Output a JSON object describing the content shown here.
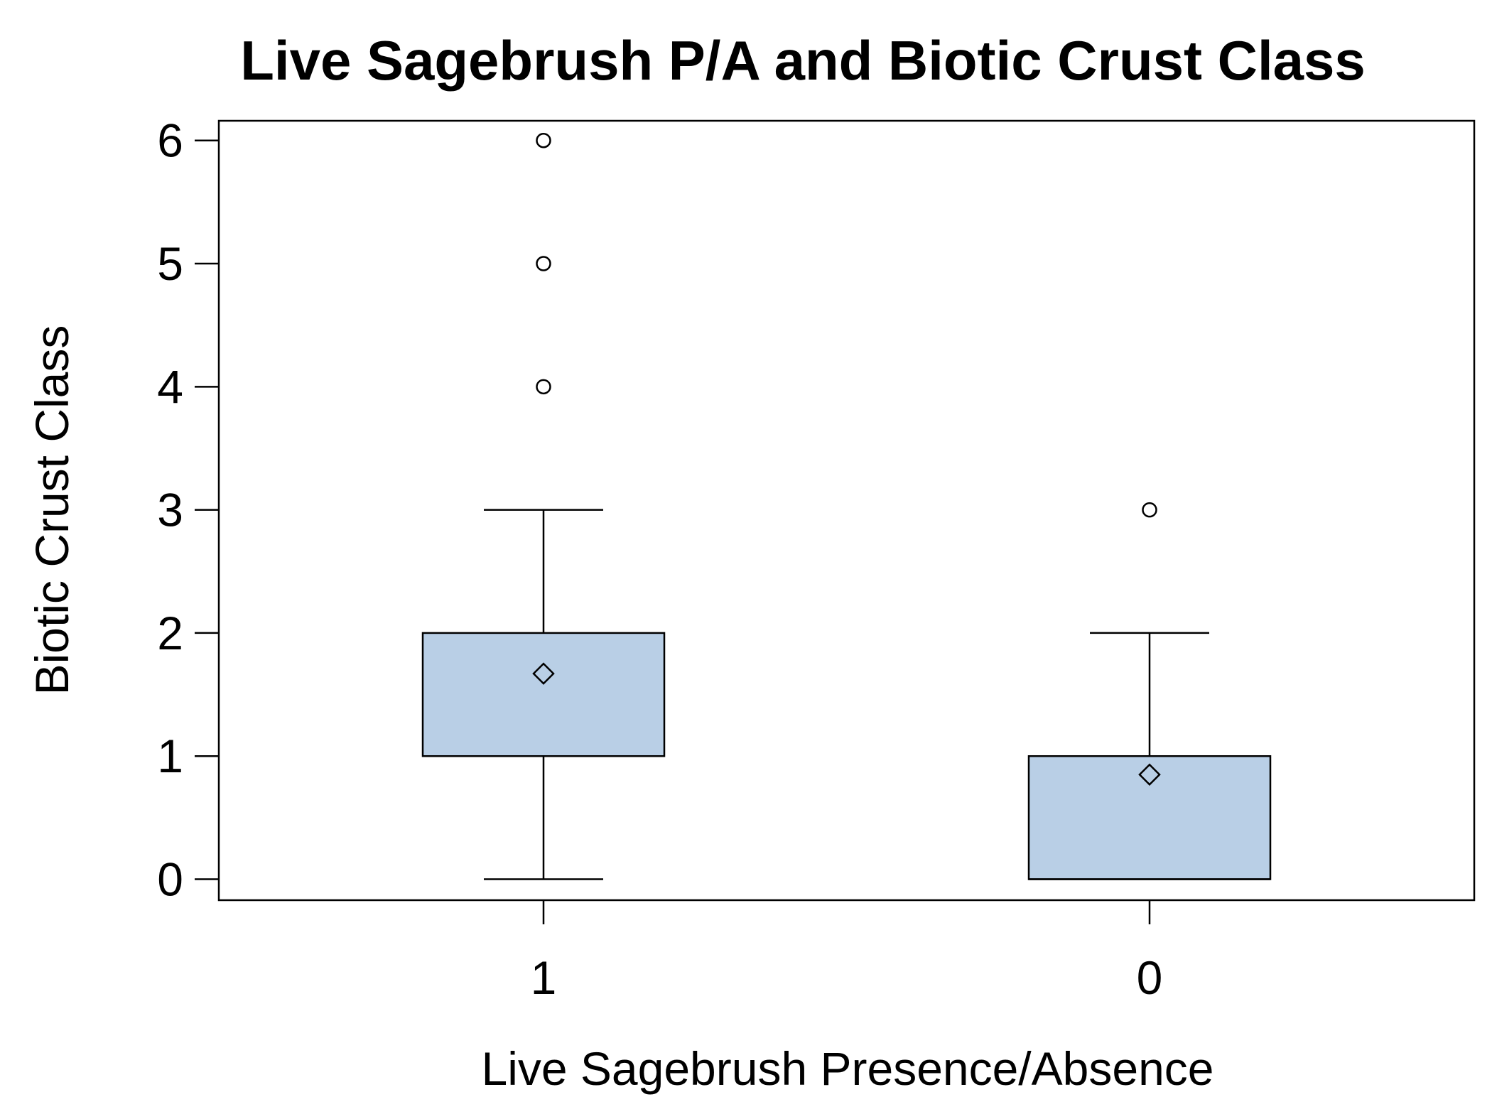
{
  "chart_data": {
    "type": "boxplot",
    "title": "Live Sagebrush P/A and Biotic Crust Class",
    "xlabel": "Live Sagebrush Presence/Absence",
    "ylabel": "Biotic Crust Class",
    "ylim": [
      -0.17,
      6.16
    ],
    "yticks": [
      "0",
      "1",
      "2",
      "3",
      "4",
      "5",
      "6"
    ],
    "grid": false,
    "legend": "none",
    "box_color": "#b9cfe6",
    "categories": [
      "1",
      "0"
    ],
    "boxes": [
      {
        "category": "1",
        "whisker_low": 0,
        "q1": 1,
        "median": 1,
        "q3": 2,
        "whisker_high": 3,
        "mean": 1.67,
        "outliers": [
          4,
          5,
          6
        ]
      },
      {
        "category": "0",
        "whisker_low": 0,
        "q1": 0,
        "median": 0,
        "q3": 1,
        "whisker_high": 2,
        "mean": 0.85,
        "outliers": [
          3
        ]
      }
    ]
  }
}
